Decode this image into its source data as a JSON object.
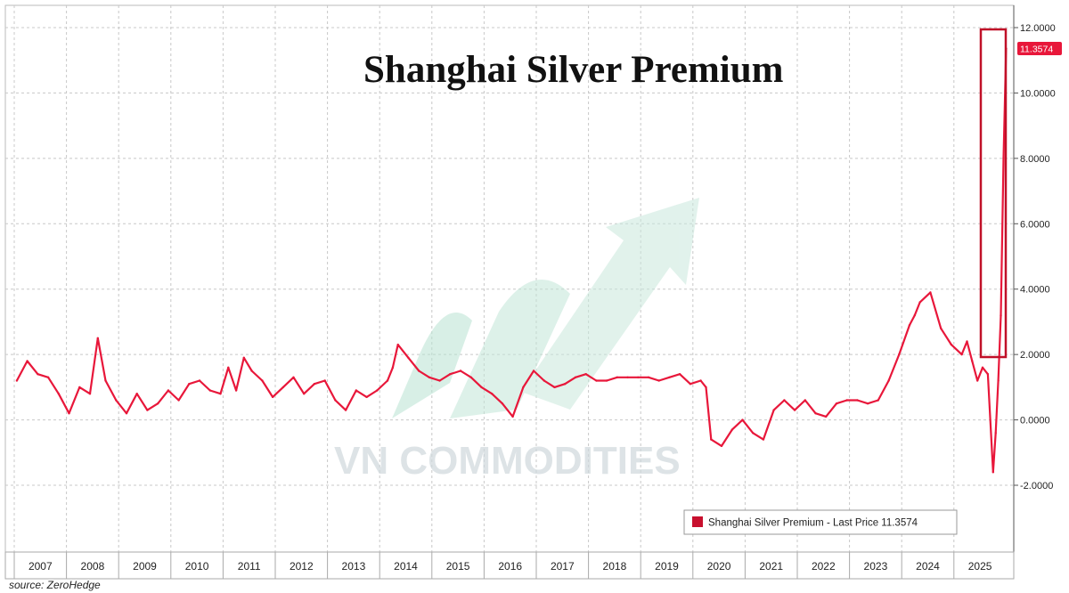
{
  "chart_data": {
    "type": "line",
    "title": "Shanghai Silver Premium",
    "source": "source: ZeroHedge",
    "watermark": "VN COMMODITIES",
    "x_labels": [
      "2007",
      "2008",
      "2009",
      "2010",
      "2011",
      "2012",
      "2013",
      "2014",
      "2015",
      "2016",
      "2017",
      "2018",
      "2019",
      "2020",
      "2021",
      "2022",
      "2023",
      "2024",
      "2025"
    ],
    "y_ticks": [
      "12.0000",
      "10.0000",
      "8.0000",
      "6.0000",
      "4.0000",
      "2.0000",
      "0.0000",
      "-2.0000"
    ],
    "ylim": [
      -3.6,
      12.0
    ],
    "last_price_label": "11.3574",
    "series": [
      {
        "name": "Shanghai Silver Premium - Last Price 11.3574",
        "color": "#e8173a",
        "x": [
          2006.9,
          2007.1,
          2007.3,
          2007.5,
          2007.7,
          2007.9,
          2008.1,
          2008.3,
          2008.45,
          2008.6,
          2008.8,
          2009.0,
          2009.2,
          2009.4,
          2009.6,
          2009.8,
          2010.0,
          2010.2,
          2010.4,
          2010.6,
          2010.8,
          2010.95,
          2011.1,
          2011.25,
          2011.4,
          2011.6,
          2011.8,
          2012.0,
          2012.2,
          2012.4,
          2012.6,
          2012.8,
          2013.0,
          2013.2,
          2013.4,
          2013.6,
          2013.8,
          2014.0,
          2014.1,
          2014.2,
          2014.4,
          2014.6,
          2014.8,
          2015.0,
          2015.2,
          2015.4,
          2015.6,
          2015.8,
          2016.0,
          2016.2,
          2016.4,
          2016.6,
          2016.8,
          2017.0,
          2017.2,
          2017.4,
          2017.6,
          2017.8,
          2018.0,
          2018.2,
          2018.4,
          2018.6,
          2018.8,
          2019.0,
          2019.2,
          2019.4,
          2019.6,
          2019.8,
          2020.0,
          2020.1,
          2020.2,
          2020.4,
          2020.6,
          2020.8,
          2021.0,
          2021.2,
          2021.4,
          2021.6,
          2021.8,
          2022.0,
          2022.2,
          2022.4,
          2022.6,
          2022.8,
          2023.0,
          2023.2,
          2023.4,
          2023.6,
          2023.8,
          2024.0,
          2024.1,
          2024.2,
          2024.4,
          2024.6,
          2024.8,
          2025.0,
          2025.1,
          2025.2,
          2025.3,
          2025.4,
          2025.5,
          2025.6,
          2025.65,
          2025.7,
          2025.75,
          2025.8,
          2025.85
        ],
        "y": [
          1.2,
          1.8,
          1.4,
          1.3,
          0.8,
          0.2,
          1.0,
          0.8,
          2.5,
          1.2,
          0.6,
          0.2,
          0.8,
          0.3,
          0.5,
          0.9,
          0.6,
          1.1,
          1.2,
          0.9,
          0.8,
          1.6,
          0.9,
          1.9,
          1.5,
          1.2,
          0.7,
          1.0,
          1.3,
          0.8,
          1.1,
          1.2,
          0.6,
          0.3,
          0.9,
          0.7,
          0.9,
          1.2,
          1.6,
          2.3,
          1.9,
          1.5,
          1.3,
          1.2,
          1.4,
          1.5,
          1.3,
          1.0,
          0.8,
          0.5,
          0.1,
          1.0,
          1.5,
          1.2,
          1.0,
          1.1,
          1.3,
          1.4,
          1.2,
          1.2,
          1.3,
          1.3,
          1.3,
          1.3,
          1.2,
          1.3,
          1.4,
          1.1,
          1.2,
          1.0,
          -0.6,
          -0.8,
          -0.3,
          0.0,
          -0.4,
          -0.6,
          0.3,
          0.6,
          0.3,
          0.6,
          0.2,
          0.1,
          0.5,
          0.6,
          0.6,
          0.5,
          0.6,
          1.2,
          2.0,
          2.9,
          3.2,
          3.6,
          3.9,
          2.8,
          2.3,
          2.0,
          2.4,
          1.8,
          1.2,
          1.6,
          1.4,
          -1.6,
          -0.4,
          1.2,
          3.2,
          8.0,
          11.3574
        ]
      }
    ]
  }
}
